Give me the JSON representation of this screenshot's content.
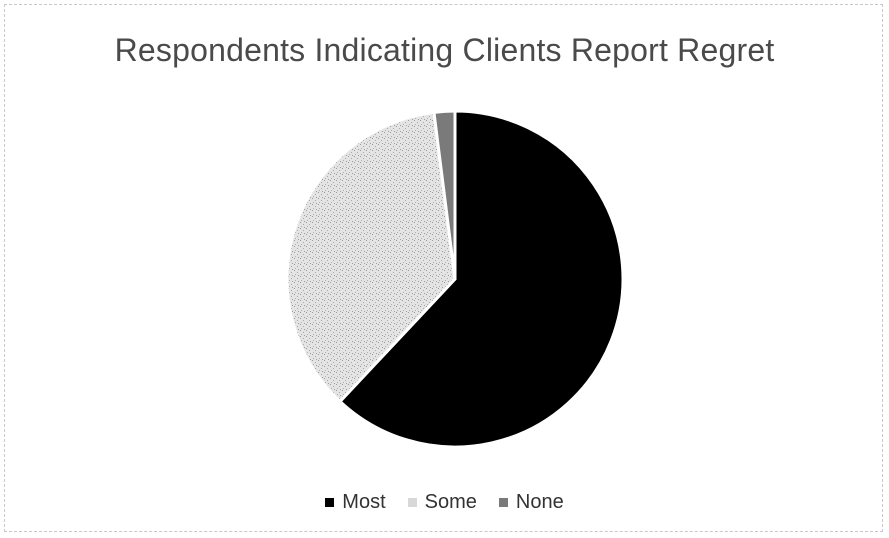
{
  "chart_data": {
    "type": "pie",
    "title": "Respondents Indicating Clients Report Regret",
    "categories": [
      "Most",
      "Some",
      "None"
    ],
    "values": [
      62,
      36,
      2
    ],
    "unit": "",
    "legend_position": "bottom",
    "colors": [
      "#000000",
      "#dcdcdc",
      "#7a7a7a"
    ],
    "start_angle_deg": 0,
    "direction": "clockwise"
  }
}
